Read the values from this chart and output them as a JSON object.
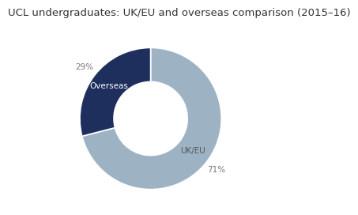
{
  "title": "UCL undergraduates: UK/EU and overseas comparison (2015–16)",
  "slices": [
    71,
    29
  ],
  "labels": [
    "UK/EU",
    "Overseas"
  ],
  "colors": [
    "#9db3c4",
    "#1e2f5e"
  ],
  "pct_labels": [
    "71%",
    "29%"
  ],
  "label_colors": [
    "#555555",
    "#ffffff"
  ],
  "pct_color": "#777777",
  "background_color": "#ffffff",
  "wedge_edge_color": "#ffffff",
  "startangle": 90,
  "counterclock": false,
  "title_fontsize": 9.5,
  "label_fontsize": 7.5,
  "pct_fontsize": 7.5,
  "donut_width": 0.48
}
